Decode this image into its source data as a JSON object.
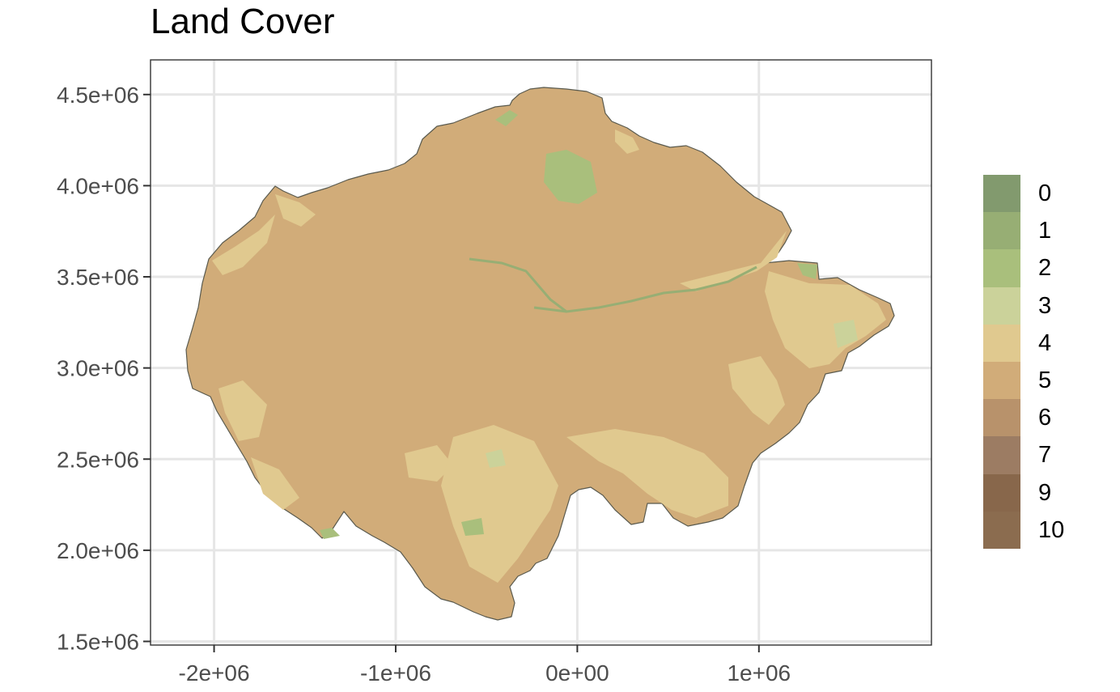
{
  "title": "Land Cover",
  "axes": {
    "x_range": [
      -2350000,
      1950000
    ],
    "y_range": [
      1480000,
      4690000
    ],
    "x_ticks": [
      {
        "value": -2000000,
        "label": "-2e+06"
      },
      {
        "value": -1000000,
        "label": "-1e+06"
      },
      {
        "value": 0,
        "label": "0e+00"
      },
      {
        "value": 1000000,
        "label": "1e+06"
      }
    ],
    "y_ticks": [
      {
        "value": 1500000,
        "label": "1.5e+06"
      },
      {
        "value": 2000000,
        "label": "2.0e+06"
      },
      {
        "value": 2500000,
        "label": "2.5e+06"
      },
      {
        "value": 3000000,
        "label": "3.0e+06"
      },
      {
        "value": 3500000,
        "label": "3.5e+06"
      },
      {
        "value": 4000000,
        "label": "4.0e+06"
      },
      {
        "value": 4500000,
        "label": "4.5e+06"
      }
    ],
    "grid": true
  },
  "legend": {
    "placement": "right",
    "items": [
      {
        "label": "0",
        "color": "#829a6e"
      },
      {
        "label": "1",
        "color": "#97ae74"
      },
      {
        "label": "2",
        "color": "#a9bf7c"
      },
      {
        "label": "3",
        "color": "#cbd29a"
      },
      {
        "label": "4",
        "color": "#e0c98f"
      },
      {
        "label": "5",
        "color": "#d1ac79"
      },
      {
        "label": "6",
        "color": "#b8926b"
      },
      {
        "label": "7",
        "color": "#9c7c63"
      },
      {
        "label": "9",
        "color": "#88674b"
      },
      {
        "label": "10",
        "color": "#8b6c4f"
      }
    ]
  },
  "map": {
    "dominant_class_color": "#d1ac79",
    "border_color": "#5a5a4e"
  }
}
